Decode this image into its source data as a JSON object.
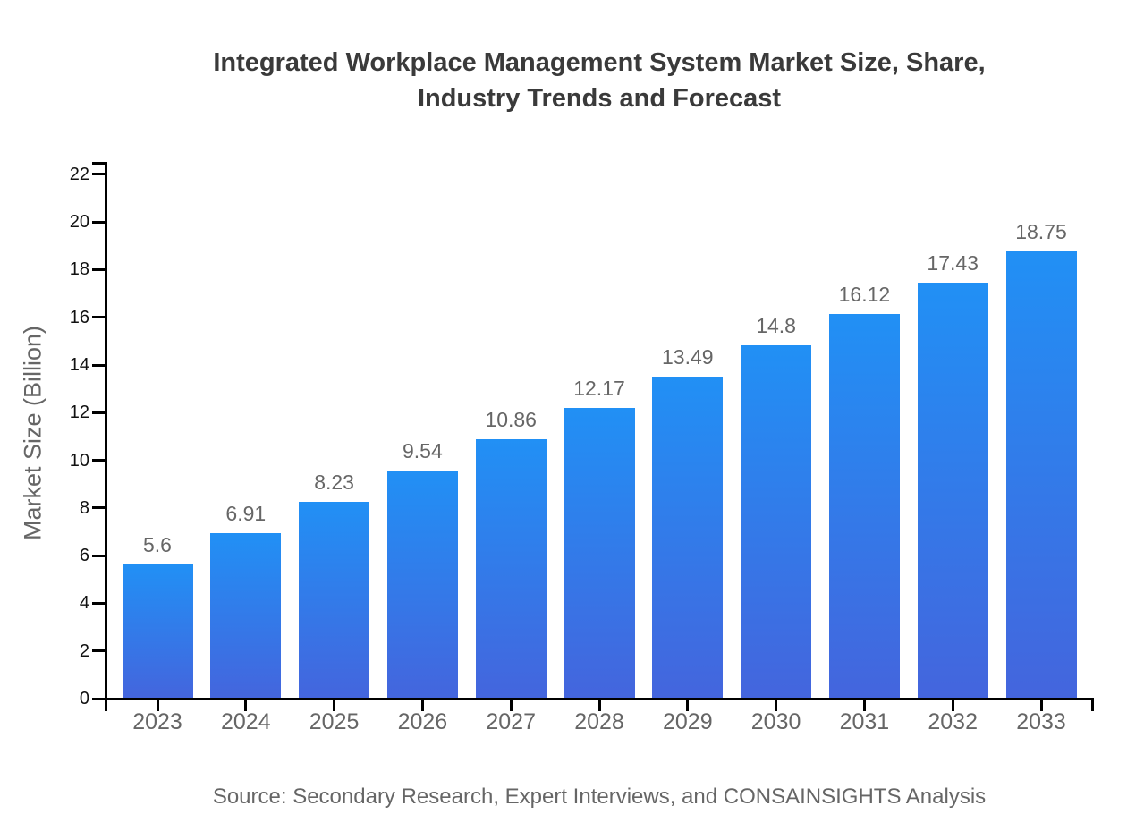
{
  "title": {
    "line1": "Integrated Workplace Management System Market Size, Share,",
    "line2": "Industry Trends and Forecast"
  },
  "source": "Source: Secondary Research, Expert Interviews, and CONSAINSIGHTS Analysis",
  "colors": {
    "bar_gradient_top": "#2190f5",
    "bar_gradient_bottom": "#4465dd",
    "axis": "#000000",
    "y_tick_label": "#111111",
    "x_tick_label": "#666666",
    "value_label": "#666666",
    "title": "#3a3a3a",
    "source": "#666666",
    "background": "#ffffff"
  },
  "chart_data": {
    "type": "bar",
    "title": "Integrated Workplace Management System Market Size, Share, Industry Trends and Forecast",
    "categories": [
      "2023",
      "2024",
      "2025",
      "2026",
      "2027",
      "2028",
      "2029",
      "2030",
      "2031",
      "2032",
      "2033"
    ],
    "values": [
      5.6,
      6.91,
      8.23,
      9.54,
      10.86,
      12.17,
      13.49,
      14.8,
      16.12,
      17.43,
      18.75
    ],
    "value_labels": [
      "5.6",
      "6.91",
      "8.23",
      "9.54",
      "10.86",
      "12.17",
      "13.49",
      "14.8",
      "16.12",
      "17.43",
      "18.75"
    ],
    "xlabel": "",
    "ylabel": "Market Size (Billion)",
    "ylim": [
      0,
      22
    ],
    "yticks": [
      0,
      2,
      4,
      6,
      8,
      10,
      12,
      14,
      16,
      18,
      20,
      22
    ],
    "grid": false,
    "legend": false,
    "bar_label_position": "above"
  }
}
